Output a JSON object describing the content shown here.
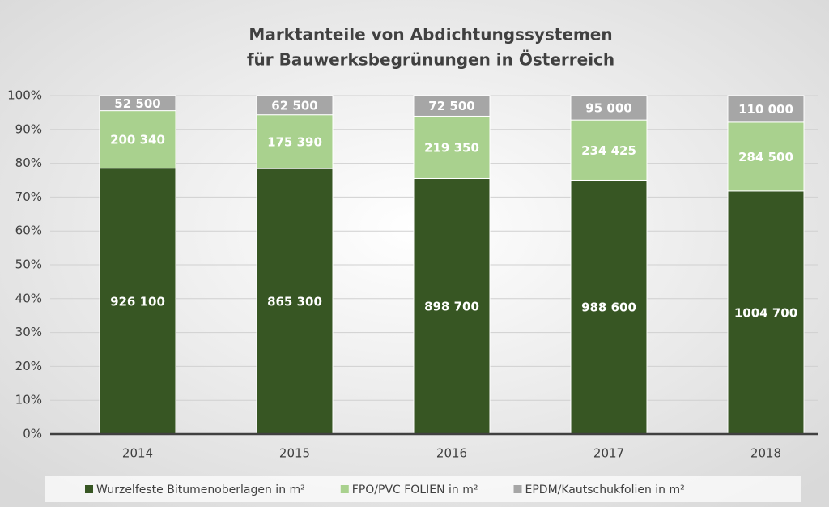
{
  "chart_data": {
    "type": "bar",
    "stack": "percent",
    "title": [
      "Marktanteile von Abdichtungssystemen",
      "für Bauwerksbegrünungen in Österreich"
    ],
    "categories": [
      "2014",
      "2015",
      "2016",
      "2017",
      "2018"
    ],
    "series": [
      {
        "name": "Wurzelfeste Bitumenoberlagen in m²",
        "color": "#375623",
        "label_color": "#ffffff",
        "values": [
          926100,
          865300,
          898700,
          988600,
          1004700
        ],
        "value_labels": [
          "926 100",
          "865 300",
          "898 700",
          "988 600",
          "1004 700"
        ]
      },
      {
        "name": "FPO/PVC FOLIEN in m²",
        "color": "#a9d18e",
        "label_color": "#ffffff",
        "values": [
          200340,
          175390,
          219350,
          234425,
          284500
        ],
        "value_labels": [
          "200 340",
          "175 390",
          "219 350",
          "234 425",
          "284 500"
        ]
      },
      {
        "name": "EPDM/Kautschukfolien in m²",
        "color": "#a6a6a6",
        "label_color": "#ffffff",
        "values": [
          52500,
          62500,
          72500,
          95000,
          110000
        ],
        "value_labels": [
          "52 500",
          "62 500",
          "72 500",
          "95 000",
          "110 000"
        ]
      }
    ],
    "ylim": [
      0,
      100
    ],
    "yticks": [
      {
        "value": 0,
        "label": "0%"
      },
      {
        "value": 10,
        "label": "10%"
      },
      {
        "value": 20,
        "label": "20%"
      },
      {
        "value": 30,
        "label": "30%"
      },
      {
        "value": 40,
        "label": "40%"
      },
      {
        "value": 50,
        "label": "50%"
      },
      {
        "value": 60,
        "label": "60%"
      },
      {
        "value": 70,
        "label": "70%"
      },
      {
        "value": 80,
        "label": "80%"
      },
      {
        "value": 90,
        "label": "90%"
      },
      {
        "value": 100,
        "label": "100%"
      }
    ],
    "grid": true,
    "legend": "bottom"
  }
}
